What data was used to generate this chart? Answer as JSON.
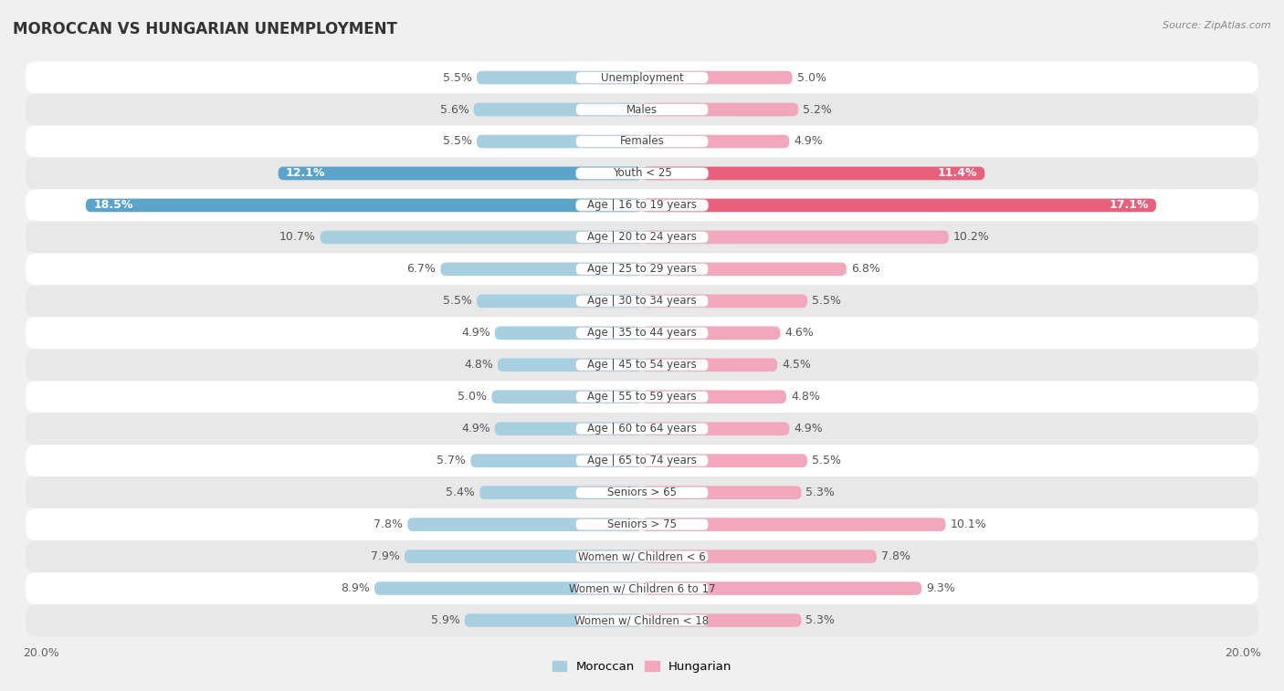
{
  "title": "MOROCCAN VS HUNGARIAN UNEMPLOYMENT",
  "source": "Source: ZipAtlas.com",
  "categories": [
    "Unemployment",
    "Males",
    "Females",
    "Youth < 25",
    "Age | 16 to 19 years",
    "Age | 20 to 24 years",
    "Age | 25 to 29 years",
    "Age | 30 to 34 years",
    "Age | 35 to 44 years",
    "Age | 45 to 54 years",
    "Age | 55 to 59 years",
    "Age | 60 to 64 years",
    "Age | 65 to 74 years",
    "Seniors > 65",
    "Seniors > 75",
    "Women w/ Children < 6",
    "Women w/ Children 6 to 17",
    "Women w/ Children < 18"
  ],
  "moroccan": [
    5.5,
    5.6,
    5.5,
    12.1,
    18.5,
    10.7,
    6.7,
    5.5,
    4.9,
    4.8,
    5.0,
    4.9,
    5.7,
    5.4,
    7.8,
    7.9,
    8.9,
    5.9
  ],
  "hungarian": [
    5.0,
    5.2,
    4.9,
    11.4,
    17.1,
    10.2,
    6.8,
    5.5,
    4.6,
    4.5,
    4.8,
    4.9,
    5.5,
    5.3,
    10.1,
    7.8,
    9.3,
    5.3
  ],
  "moroccan_color_normal": "#a8cfe0",
  "moroccan_color_highlight": "#5ba3c9",
  "hungarian_color_normal": "#f2a8bc",
  "hungarian_color_highlight": "#e8607a",
  "bg_color": "#f0f0f0",
  "row_color_light": "#ffffff",
  "row_color_dark": "#e8e8e8",
  "max_value": 20.0,
  "bar_height": 0.42,
  "label_fontsize": 9.0,
  "title_fontsize": 12,
  "category_fontsize": 8.5,
  "highlight_indices": [
    3,
    4
  ],
  "white_label_indices": [
    3,
    4
  ]
}
